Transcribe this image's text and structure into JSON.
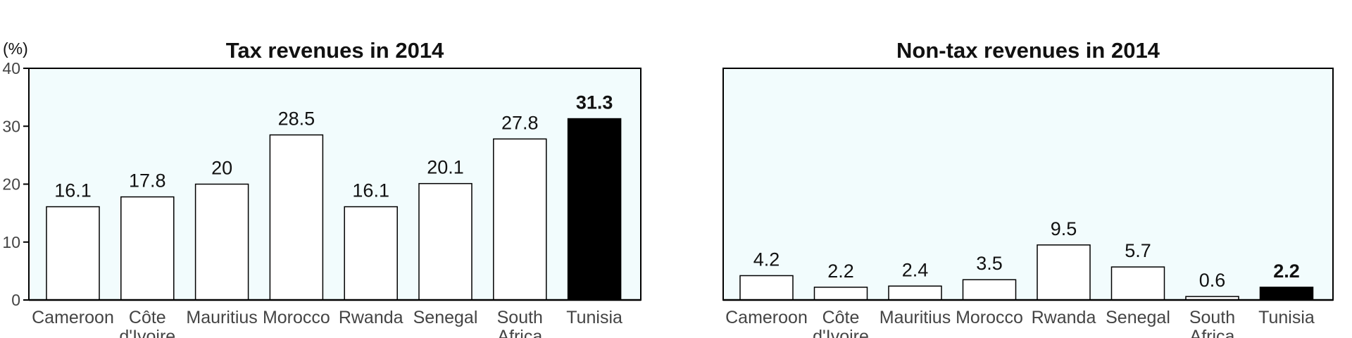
{
  "chart_data": [
    {
      "type": "bar",
      "title": "Tax revenues in 2014",
      "unit_label": "(%)",
      "ylim": [
        0,
        40
      ],
      "y_ticks": [
        0,
        10,
        20,
        30,
        40
      ],
      "categories": [
        "Cameroon",
        "Côte d'Ivoire",
        "Mauritius",
        "Morocco",
        "Rwanda",
        "Senegal",
        "South Africa",
        "Tunisia"
      ],
      "category_lines": [
        [
          "Cameroon"
        ],
        [
          "Côte",
          "d'Ivoire"
        ],
        [
          "Mauritius"
        ],
        [
          "Morocco"
        ],
        [
          "Rwanda"
        ],
        [
          "Senegal"
        ],
        [
          "South",
          "Africa"
        ],
        [
          "Tunisia"
        ]
      ],
      "values": [
        16.1,
        17.8,
        20,
        28.5,
        16.1,
        20.1,
        27.8,
        31.3
      ],
      "value_labels": [
        "16.1",
        "17.8",
        "20",
        "28.5",
        "16.1",
        "20.1",
        "27.8",
        "31.3"
      ],
      "highlight": "Tunisia",
      "show_y_axis": true,
      "grid": false
    },
    {
      "type": "bar",
      "title": "Non-tax revenues in 2014",
      "ylim": [
        0,
        40
      ],
      "categories": [
        "Cameroon",
        "Côte d'Ivoire",
        "Mauritius",
        "Morocco",
        "Rwanda",
        "Senegal",
        "South Africa",
        "Tunisia"
      ],
      "category_lines": [
        [
          "Cameroon"
        ],
        [
          "Côte",
          "d'Ivoire"
        ],
        [
          "Mauritius"
        ],
        [
          "Morocco"
        ],
        [
          "Rwanda"
        ],
        [
          "Senegal"
        ],
        [
          "South",
          "Africa"
        ],
        [
          "Tunisia"
        ]
      ],
      "values": [
        4.2,
        2.2,
        2.4,
        3.5,
        9.5,
        5.7,
        0.6,
        2.2
      ],
      "value_labels": [
        "4.2",
        "2.2",
        "2.4",
        "3.5",
        "9.5",
        "5.7",
        "0.6",
        "2.2"
      ],
      "highlight": "Tunisia",
      "show_y_axis": false,
      "grid": false
    }
  ],
  "colors": {
    "panel_background": "#f2fcfd",
    "bar_fill": "#ffffff",
    "bar_stroke": "#000000",
    "highlight_fill": "#000000",
    "axis": "#000000",
    "text": "#111111",
    "category_text": "#444444"
  }
}
